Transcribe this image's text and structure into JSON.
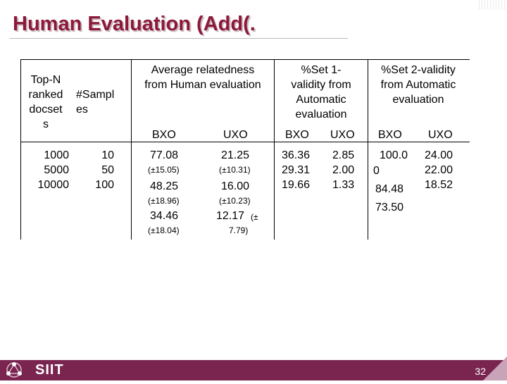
{
  "slide": {
    "title": "Human Evaluation (Add(.",
    "page_number": "32",
    "brand": "SIIT"
  },
  "table": {
    "col1_header": [
      "Top-N",
      "ranked",
      "docset",
      "s"
    ],
    "col2_header": [
      "#Sampl",
      "es"
    ],
    "avg_header": [
      "Average relatedness",
      "from Human evaluation"
    ],
    "set1_header": [
      "%Set 1-",
      "validity from",
      "Automatic",
      "evaluation"
    ],
    "set2_header": [
      "%Set 2-validity",
      "from Automatic",
      "evaluation"
    ],
    "sub_bxo": "BXO",
    "sub_uxo": "UXO",
    "topn": [
      "1000",
      "5000",
      "10000"
    ],
    "samples": [
      "10",
      "50",
      "100"
    ],
    "avg_bxo": {
      "v1": "77.08",
      "s1": "(±15.05)",
      "v2": "48.25",
      "s2": "(±18.96)",
      "v3": "34.46",
      "s3": "(±18.04)"
    },
    "avg_uxo": {
      "v1": "21.25",
      "s1": "(±10.31)",
      "v2": "16.00",
      "s2": "(±10.23)",
      "v3": "12.17",
      "s3a": "(±",
      "s3b": "7.79)"
    },
    "set1_bxo": [
      "36.36",
      "29.31",
      "19.66"
    ],
    "set1_uxo": [
      "2.85",
      "2.00",
      "1.33"
    ],
    "set2_bxo": [
      "100.0",
      "0",
      "84.48",
      "73.50"
    ],
    "set2_uxo": [
      "24.00",
      "22.00",
      "18.52"
    ]
  },
  "colors": {
    "title": "#8b1a3a",
    "footer": "#7a2550"
  }
}
